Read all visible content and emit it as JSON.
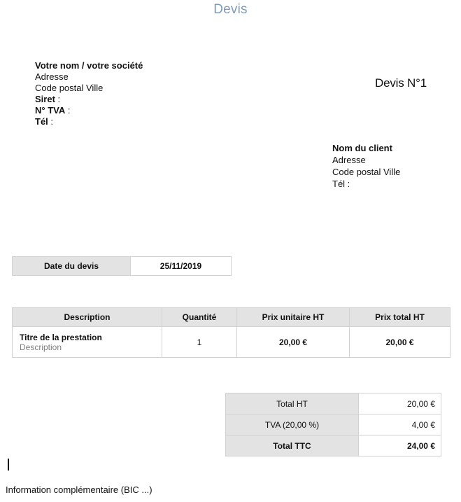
{
  "document": {
    "title": "Devis",
    "number": "Devis N°1"
  },
  "sender": {
    "name": "Votre nom / votre société",
    "address": "Adresse",
    "postal_city": "Code postal Ville",
    "siret_label": "Siret",
    "tva_label": "N° TVA",
    "tel_label": "Tél",
    "colon": " :"
  },
  "client": {
    "name": "Nom du client",
    "address": "Adresse",
    "postal_city": "Code postal Ville",
    "tel_label": "Tél",
    "colon": " :"
  },
  "date_row": {
    "label": "Date du devis",
    "value": "25/11/2019"
  },
  "items_table": {
    "headers": {
      "description": "Description",
      "quantity": "Quantité",
      "unit_price": "Prix unitaire HT",
      "total_price": "Prix total HT"
    },
    "row": {
      "title": "Titre de la prestation",
      "subtitle": "Description",
      "quantity": "1",
      "unit_price": "20,00 €",
      "total_price": "20,00 €"
    }
  },
  "totals": {
    "total_ht": {
      "label": "Total HT",
      "value": "20,00 €"
    },
    "tva": {
      "label": "TVA (20,00 %)",
      "value": "4,00 €"
    },
    "total_ttc": {
      "label": "Total TTC",
      "value": "24,00 €"
    }
  },
  "footer": {
    "note": "Information complémentaire (BIC ...)"
  },
  "colors": {
    "title_blue": "#7d9cbd",
    "cell_gray": "#e3e3e3",
    "border_gray": "#d2d2d2",
    "muted_text": "#808080"
  }
}
